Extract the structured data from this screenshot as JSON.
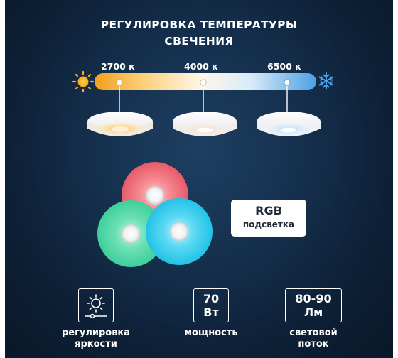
{
  "header": {
    "line1": "РЕГУЛИРОВКА ТЕМПЕРАТУРЫ",
    "line2": "СВЕЧЕНИЯ"
  },
  "temperature_scale": {
    "start_icon": "sun-icon",
    "end_icon": "snowflake-icon",
    "colors": [
      "#f5a623",
      "#fff4e2",
      "#5aa7e6"
    ],
    "markers": [
      {
        "label": "2700 к"
      },
      {
        "label": "4000 к"
      },
      {
        "label": "6500 к"
      }
    ]
  },
  "rgb": {
    "line1": "RGB",
    "line2": "подсветка",
    "colors": [
      "#f06a78",
      "#4fd6a8",
      "#2ec9ea"
    ]
  },
  "features": [
    {
      "icon": "brightness-icon",
      "label_line1": "регулировка",
      "label_line2": "яркости"
    },
    {
      "value_line1": "70",
      "value_line2": "Вт",
      "label_line1": "мощность",
      "label_line2": ""
    },
    {
      "value_line1": "80-90",
      "value_line2": "Лм",
      "label_line1": "световой",
      "label_line2": "поток"
    }
  ]
}
